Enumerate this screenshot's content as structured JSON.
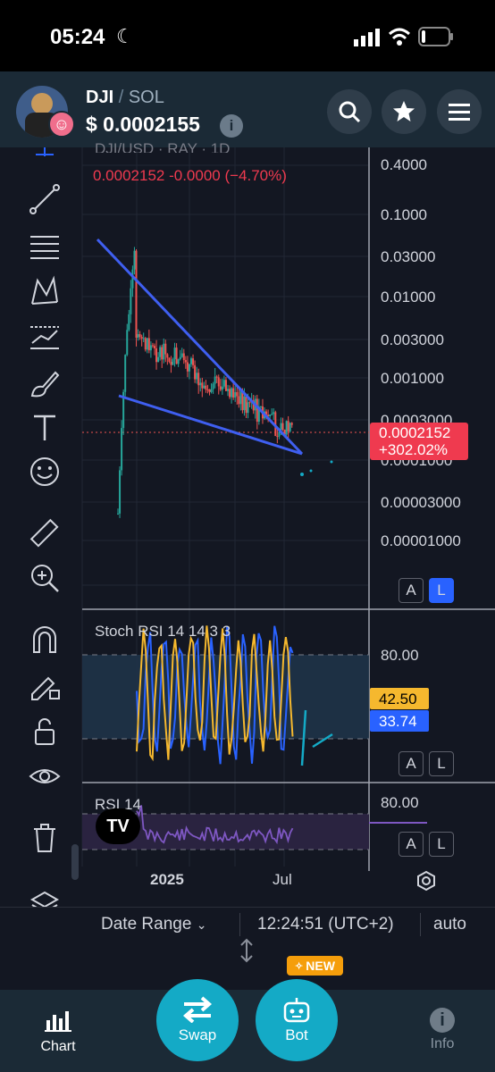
{
  "status": {
    "time": "05:24"
  },
  "token": {
    "symbol": "DJI",
    "separator": "/",
    "chain": "SOL",
    "price": "$ 0.0002155"
  },
  "chart": {
    "series_title": "DJI/USD · RAY · 1D",
    "ohlc": "0.0002152  -0.0000 (−4.70%)",
    "price_axis": [
      "0.4000",
      "0.1000",
      "0.03000",
      "0.01000",
      "0.003000",
      "0.001000",
      "0.0003000",
      "0.0001000",
      "0.00003000",
      "0.00001000"
    ],
    "current_price": "0.0002152",
    "current_change": "+302.02%",
    "stoch_title": "Stoch RSI 14 14 3 3",
    "stoch_level": "80.00",
    "stoch_k": "42.50",
    "stoch_d": "33.74",
    "rsi_title": "RSI 14",
    "rsi_level": "80.00",
    "x_labels": [
      "2025",
      "Jul"
    ],
    "btn_auto": "A",
    "btn_log": "L"
  },
  "footer": {
    "date_range": "Date Range",
    "clock": "12:24:51 (UTC+2)",
    "auto": "auto"
  },
  "tabs": {
    "chart": "Chart",
    "swap": "Swap",
    "bot": "Bot",
    "bot_badge": "NEW",
    "info": "Info"
  },
  "colors": {
    "accent": "#14aac6",
    "up": "#26a69a",
    "down": "#ef5350",
    "trend": "#3f5ff0"
  }
}
